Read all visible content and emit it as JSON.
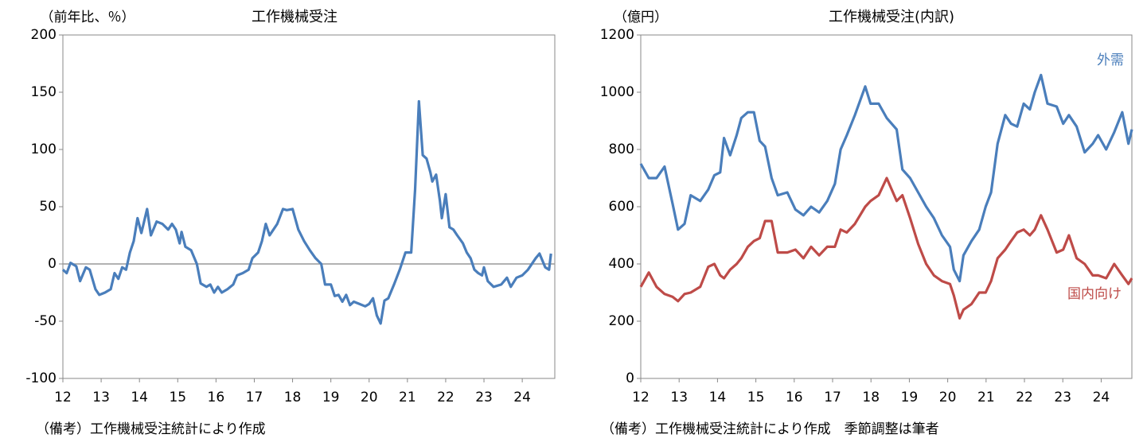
{
  "chart_data": [
    {
      "type": "line",
      "title": "工作機械受注",
      "y_label": "（前年比、％）",
      "note": "（備考）工作機械受注統計により作成",
      "color": "#4a7ebb",
      "x": [
        12.0,
        12.1,
        12.2,
        12.35,
        12.45,
        12.6,
        12.7,
        12.85,
        12.95,
        13.1,
        13.25,
        13.35,
        13.45,
        13.55,
        13.65,
        13.75,
        13.85,
        13.95,
        14.05,
        14.2,
        14.3,
        14.45,
        14.6,
        14.75,
        14.85,
        14.95,
        15.05,
        15.1,
        15.2,
        15.35,
        15.5,
        15.6,
        15.75,
        15.85,
        15.95,
        16.05,
        16.15,
        16.3,
        16.45,
        16.55,
        16.7,
        16.85,
        16.95,
        17.1,
        17.2,
        17.3,
        17.4,
        17.5,
        17.6,
        17.75,
        17.85,
        18.0,
        18.15,
        18.3,
        18.45,
        18.6,
        18.75,
        18.85,
        19.0,
        19.1,
        19.2,
        19.3,
        19.4,
        19.5,
        19.6,
        19.75,
        19.9,
        20.0,
        20.1,
        20.2,
        20.3,
        20.4,
        20.5,
        20.65,
        20.8,
        20.95,
        21.1,
        21.2,
        21.3,
        21.4,
        21.5,
        21.6,
        21.65,
        21.75,
        21.85,
        21.9,
        22.0,
        22.1,
        22.2,
        22.3,
        22.45,
        22.55,
        22.65,
        22.75,
        22.85,
        22.95,
        23.0,
        23.1,
        23.25,
        23.45,
        23.6,
        23.7,
        23.85,
        24.0,
        24.15,
        24.35,
        24.45,
        24.6,
        24.7,
        24.75
      ],
      "values": [
        -5,
        -8,
        1,
        -2,
        -15,
        -3,
        -5,
        -22,
        -27,
        -25,
        -22,
        -8,
        -13,
        -3,
        -5,
        10,
        20,
        40,
        27,
        48,
        25,
        37,
        35,
        30,
        35,
        30,
        18,
        28,
        15,
        12,
        0,
        -17,
        -20,
        -18,
        -25,
        -20,
        -25,
        -22,
        -18,
        -10,
        -8,
        -5,
        5,
        10,
        20,
        35,
        25,
        30,
        35,
        48,
        47,
        48,
        30,
        20,
        12,
        5,
        0,
        -18,
        -18,
        -28,
        -27,
        -33,
        -27,
        -36,
        -33,
        -35,
        -37,
        -35,
        -30,
        -45,
        -52,
        -32,
        -30,
        -18,
        -5,
        10,
        10,
        65,
        142,
        95,
        92,
        80,
        72,
        78,
        55,
        40,
        61,
        32,
        30,
        25,
        18,
        10,
        5,
        -5,
        -8,
        -10,
        -3,
        -15,
        -20,
        -18,
        -12,
        -20,
        -12,
        -10,
        -5,
        5,
        9,
        -3,
        -5,
        9
      ],
      "xlim": [
        12,
        24.85
      ],
      "xticks": [
        12,
        13,
        14,
        15,
        16,
        17,
        18,
        19,
        20,
        21,
        22,
        23,
        24
      ],
      "ylim": [
        -100,
        200
      ],
      "yticks": [
        -100,
        -50,
        0,
        50,
        100,
        150,
        200
      ],
      "zero_line": true
    },
    {
      "type": "line",
      "title": "工作機械受注(内訳)",
      "y_label": "（億円）",
      "note": "（備考）工作機械受注統計により作成　季節調整は筆者",
      "x": [
        12.0,
        12.21,
        12.41,
        12.62,
        12.83,
        12.97,
        13.14,
        13.3,
        13.55,
        13.76,
        13.92,
        14.07,
        14.17,
        14.33,
        14.5,
        14.62,
        14.79,
        14.95,
        15.1,
        15.24,
        15.41,
        15.57,
        15.82,
        16.03,
        16.24,
        16.44,
        16.65,
        16.86,
        17.06,
        17.21,
        17.37,
        17.58,
        17.85,
        17.99,
        18.2,
        18.41,
        18.67,
        18.82,
        19.02,
        19.23,
        19.44,
        19.64,
        19.85,
        20.06,
        20.16,
        20.31,
        20.41,
        20.62,
        20.82,
        20.99,
        21.13,
        21.3,
        21.5,
        21.65,
        21.81,
        21.98,
        22.14,
        22.27,
        22.43,
        22.6,
        22.84,
        23.01,
        23.16,
        23.36,
        23.57,
        23.78,
        23.92,
        24.13,
        24.34,
        24.55,
        24.71,
        24.8
      ],
      "series": [
        {
          "name": "外需",
          "color": "#4a7ebb",
          "values": [
            750,
            700,
            700,
            740,
            610,
            520,
            540,
            640,
            620,
            660,
            710,
            720,
            840,
            780,
            850,
            910,
            930,
            930,
            830,
            810,
            700,
            640,
            650,
            590,
            570,
            600,
            580,
            620,
            680,
            800,
            850,
            920,
            1020,
            960,
            960,
            910,
            870,
            730,
            700,
            650,
            600,
            560,
            500,
            460,
            380,
            340,
            430,
            480,
            520,
            600,
            650,
            820,
            920,
            890,
            880,
            960,
            940,
            1000,
            1060,
            960,
            950,
            890,
            920,
            880,
            790,
            820,
            850,
            800,
            860,
            930,
            820,
            870
          ]
        },
        {
          "name": "国内向け",
          "color": "#be4b48",
          "values": [
            320,
            370,
            320,
            295,
            285,
            270,
            295,
            300,
            320,
            390,
            400,
            360,
            350,
            380,
            400,
            420,
            460,
            480,
            490,
            550,
            550,
            440,
            440,
            450,
            420,
            460,
            430,
            460,
            460,
            520,
            510,
            540,
            600,
            620,
            640,
            700,
            620,
            640,
            560,
            470,
            400,
            360,
            340,
            330,
            290,
            210,
            240,
            260,
            300,
            300,
            340,
            420,
            450,
            480,
            510,
            520,
            500,
            520,
            570,
            520,
            440,
            450,
            500,
            420,
            400,
            360,
            360,
            350,
            400,
            360,
            330,
            350
          ]
        }
      ],
      "xlim": [
        12,
        24.8
      ],
      "xticks": [
        12,
        13,
        14,
        15,
        16,
        17,
        18,
        19,
        20,
        21,
        22,
        23,
        24
      ],
      "ylim": [
        0,
        1200
      ],
      "yticks": [
        0,
        200,
        400,
        600,
        800,
        1000,
        1200
      ]
    }
  ]
}
